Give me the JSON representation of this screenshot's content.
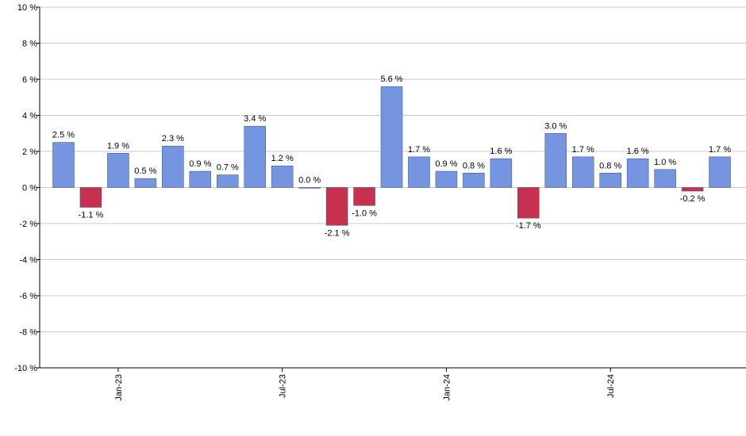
{
  "chart_data": {
    "type": "bar",
    "categories": [
      null,
      null,
      "Jan-23",
      null,
      null,
      null,
      null,
      null,
      "Jul-23",
      null,
      null,
      null,
      null,
      null,
      "Jan-24",
      null,
      null,
      null,
      null,
      null,
      "Jul-24",
      null,
      null,
      null,
      null
    ],
    "values": [
      2.5,
      -1.1,
      1.9,
      0.5,
      2.3,
      0.9,
      0.7,
      3.4,
      1.2,
      0.0,
      -2.1,
      -1.0,
      5.6,
      1.7,
      0.9,
      0.8,
      1.6,
      -1.7,
      3.0,
      1.7,
      0.8,
      1.6,
      1.0,
      -0.2,
      1.7
    ],
    "value_labels": [
      "2.5 %",
      "-1.1 %",
      "1.9 %",
      "0.5 %",
      "2.3 %",
      "0.9 %",
      "0.7 %",
      "3.4 %",
      "1.2 %",
      "0.0 %",
      "-2.1 %",
      "-1.0 %",
      "5.6 %",
      "1.7 %",
      "0.9 %",
      "0.8 %",
      "1.6 %",
      "-1.7 %",
      "3.0 %",
      "1.7 %",
      "0.8 %",
      "1.6 %",
      "1.0 %",
      "-0.2 %",
      "1.7 %"
    ],
    "positive_color": "#7595e0",
    "negative_color": "#c8304f",
    "ylim": [
      -10,
      10
    ],
    "yticks": [
      {
        "value": -10,
        "label": "-10 %"
      },
      {
        "value": -8,
        "label": "-8 %"
      },
      {
        "value": -6,
        "label": "-6 %"
      },
      {
        "value": -4,
        "label": "-4 %"
      },
      {
        "value": -2,
        "label": "-2 %"
      },
      {
        "value": 0,
        "label": "0 %"
      },
      {
        "value": 2,
        "label": "2 %"
      },
      {
        "value": 4,
        "label": "4 %"
      },
      {
        "value": 6,
        "label": "6 %"
      },
      {
        "value": 8,
        "label": "8 %"
      },
      {
        "value": 10,
        "label": "10 %"
      }
    ],
    "grid": true
  }
}
